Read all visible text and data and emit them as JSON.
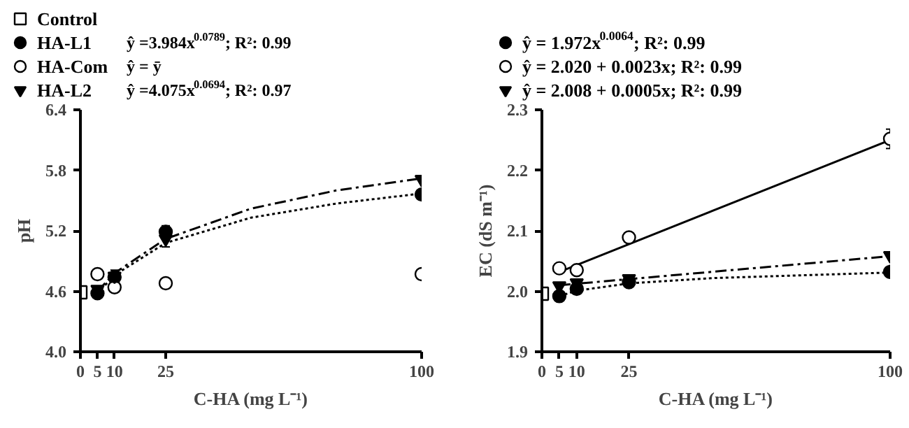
{
  "chart_data": [
    {
      "type": "scatter",
      "xlabel": "C-HA (mg L⁻¹)",
      "ylabel": "pH",
      "xlim": [
        0,
        100
      ],
      "xticks": [
        0,
        5,
        10,
        25,
        100
      ],
      "ylim": [
        4.0,
        6.4
      ],
      "yticks": [
        {
          "value": 4.0,
          "label": "4.0"
        },
        4.6,
        5.2,
        5.8,
        6.4
      ],
      "grid": false,
      "legend": "top left",
      "annotations": [
        "ŷ =3.984x$^{0.0789}$; R²: 0.99",
        "ŷ = ȳ",
        "ŷ =4.075x$^{0.0694}$; R²: 0.97"
      ],
      "series": [
        {
          "name": "Control",
          "marker": "square",
          "color": "#ffffff",
          "x": [
            0
          ],
          "values": [
            4.59
          ]
        },
        {
          "name": "HA-L1",
          "marker": "circle",
          "color": "#000000",
          "x": [
            5,
            10,
            25,
            100
          ],
          "values": [
            4.58,
            4.74,
            5.19,
            5.56
          ],
          "errors": [
            null,
            null,
            0.06,
            null
          ]
        },
        {
          "name": "HA-Com",
          "marker": "circle",
          "color": "#ffffff",
          "x": [
            5,
            10,
            25,
            100
          ],
          "values": [
            4.77,
            4.64,
            4.68,
            4.77
          ]
        },
        {
          "name": "HA-L2",
          "marker": "triangle",
          "color": "#000000",
          "x": [
            5,
            10,
            25,
            100
          ],
          "values": [
            4.62,
            4.75,
            5.12,
            5.71
          ],
          "errors": [
            null,
            0.06,
            0.08,
            null
          ]
        },
        {
          "type": "line",
          "line_style": "dotted",
          "color": "#000000",
          "x": [
            5,
            10,
            25,
            50,
            75,
            100
          ],
          "values": [
            4.58,
            4.76,
            5.08,
            5.33,
            5.47,
            5.57
          ]
        },
        {
          "type": "line",
          "line_style": "dashed",
          "color": "#000000",
          "x": [
            5,
            10,
            25,
            50,
            75,
            100
          ],
          "values": [
            4.6,
            4.78,
            5.12,
            5.42,
            5.6,
            5.72
          ]
        }
      ]
    },
    {
      "type": "scatter",
      "xlabel": "C-HA (mg L⁻¹)",
      "ylabel": "EC (dS m⁻¹)",
      "xlim": [
        0,
        100
      ],
      "xticks": [
        0,
        5,
        10,
        25,
        100
      ],
      "ylim": [
        1.9,
        2.3
      ],
      "yticks": [
        1.9,
        {
          "value": 2.0,
          "label": "2.0"
        },
        2.1,
        2.2,
        2.3
      ],
      "grid": false,
      "legend": "top left",
      "series": [
        {
          "marker": "square",
          "color": "#ffffff",
          "x": [
            0
          ],
          "values": [
            1.996
          ]
        },
        {
          "name": "ŷ = 1.972x$^{0.0064}$; R²: 0.99",
          "marker": "circle",
          "color": "#000000",
          "x": [
            5,
            10,
            25,
            100
          ],
          "values": [
            1.992,
            2.004,
            2.015,
            2.032
          ]
        },
        {
          "name": "ŷ = 2.020 + 0.0023x; R²: 0.99",
          "marker": "circle",
          "color": "#ffffff",
          "x": [
            5,
            10,
            25,
            100
          ],
          "values": [
            2.038,
            2.035,
            2.089,
            2.252
          ],
          "errors": [
            null,
            null,
            null,
            0.016
          ]
        },
        {
          "name": "ŷ = 2.008 + 0.0005x; R²: 0.99",
          "marker": "triangle",
          "color": "#000000",
          "x": [
            5,
            10,
            25,
            100
          ],
          "values": [
            2.009,
            2.014,
            2.021,
            2.059
          ]
        },
        {
          "type": "line",
          "line_style": "solid",
          "color": "#000000",
          "x": [
            5,
            100
          ],
          "values": [
            2.032,
            2.25
          ]
        },
        {
          "type": "line",
          "line_style": "dashed",
          "color": "#000000",
          "x": [
            5,
            100
          ],
          "values": [
            2.01,
            2.058
          ]
        },
        {
          "type": "line",
          "line_style": "dotted",
          "color": "#000000",
          "x": [
            5,
            10,
            25,
            50,
            100
          ],
          "values": [
            1.992,
            2.001,
            2.013,
            2.022,
            2.031
          ]
        }
      ]
    }
  ]
}
